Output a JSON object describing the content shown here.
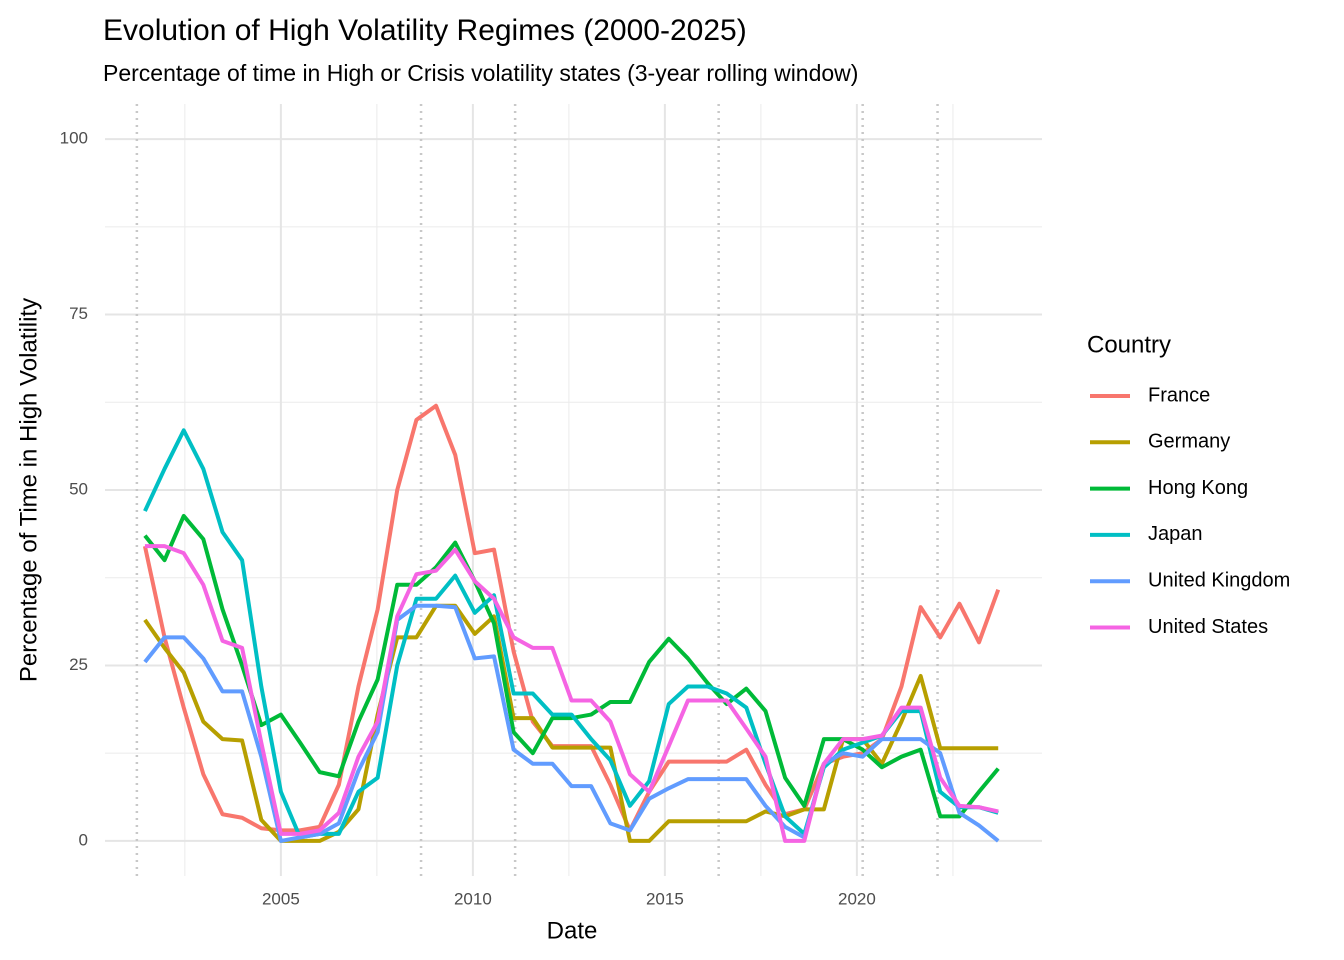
{
  "chart_data": {
    "type": "line",
    "title": "Evolution of High Volatility Regimes (2000-2025)",
    "subtitle": "Percentage of time in High or Crisis volatility states (3-year rolling window)",
    "x_label": "Date",
    "y_label": "Percentage of Time in High Volatility",
    "legend_title": "Country",
    "legend_position": "right",
    "grid": true,
    "xlim": [
      2000.42,
      2024.82
    ],
    "ylim": [
      -5,
      105
    ],
    "xticks": [
      2005,
      2010,
      2015,
      2020
    ],
    "yticks": [
      0,
      25,
      50,
      75,
      100
    ],
    "xminorticks": [
      2002.5,
      2007.5,
      2012.5,
      2017.5,
      2022.5
    ],
    "yminorticks": [
      12.5,
      37.5,
      62.5,
      87.5
    ],
    "event_lines": [
      2001.25,
      2008.65,
      2011.1,
      2016.4,
      2020.15,
      2022.1
    ],
    "x": [
      2001.46,
      2001.97,
      2002.47,
      2002.98,
      2003.48,
      2003.99,
      2004.49,
      2005.0,
      2005.5,
      2006.01,
      2006.51,
      2007.02,
      2007.52,
      2008.03,
      2008.53,
      2009.04,
      2009.54,
      2010.05,
      2010.55,
      2011.06,
      2011.56,
      2012.07,
      2012.57,
      2013.08,
      2013.58,
      2014.09,
      2014.59,
      2015.1,
      2015.6,
      2016.11,
      2016.61,
      2017.12,
      2017.62,
      2018.13,
      2018.63,
      2019.14,
      2019.64,
      2020.15,
      2020.65,
      2021.16,
      2021.66,
      2022.17,
      2022.67,
      2023.18,
      2023.68
    ],
    "series": [
      {
        "name": "France",
        "color": "#F8766D",
        "values": [
          42,
          29,
          19,
          9.5,
          3.8,
          3.3,
          1.8,
          1.5,
          1.5,
          2,
          8,
          22,
          33,
          50,
          60,
          62,
          55,
          41,
          41.5,
          27,
          17,
          13.5,
          13.5,
          13.5,
          8,
          1.5,
          7,
          11.3,
          11.3,
          11.3,
          11.3,
          13,
          8,
          3.8,
          4.5,
          11,
          12,
          12.5,
          14.5,
          22,
          33.3,
          29,
          33.8,
          28.3,
          35.8
        ]
      },
      {
        "name": "Germany",
        "color": "#B79F00",
        "values": [
          31.5,
          27.5,
          24,
          17,
          14.5,
          14.3,
          3,
          0,
          0,
          0,
          1.3,
          4.5,
          18,
          29,
          29,
          33.5,
          33.5,
          29.5,
          32,
          17.5,
          17.5,
          13.3,
          13.3,
          13.3,
          13.3,
          0,
          0,
          2.8,
          2.8,
          2.8,
          2.8,
          2.8,
          4.2,
          3.5,
          4.5,
          4.5,
          14.5,
          14.5,
          11,
          17,
          23.5,
          13.2,
          13.2,
          13.2,
          13.2
        ]
      },
      {
        "name": "Hong Kong",
        "color": "#00BA38",
        "values": [
          43.5,
          40,
          46.3,
          43,
          33,
          25,
          16.5,
          18,
          14,
          9.8,
          9.2,
          17,
          23,
          36.5,
          36.5,
          39,
          42.5,
          37,
          31,
          15.5,
          12.5,
          17.5,
          17.5,
          18,
          19.8,
          19.8,
          25.5,
          28.8,
          26,
          22.5,
          19.5,
          21.7,
          18.5,
          9,
          5,
          14.5,
          14.5,
          13,
          10.5,
          12,
          13,
          3.5,
          3.5,
          7,
          10.3
        ]
      },
      {
        "name": "Japan",
        "color": "#00BFC4",
        "values": [
          47,
          53,
          58.5,
          53,
          44,
          40,
          22,
          7,
          0.5,
          1,
          1,
          7,
          9,
          25,
          34.5,
          34.5,
          37.8,
          32.5,
          35,
          21,
          21,
          18,
          18,
          14.5,
          11.5,
          5,
          8.5,
          19.5,
          22,
          22,
          21,
          19,
          11,
          3.5,
          1,
          10.5,
          13,
          14,
          15,
          18.5,
          18.5,
          7,
          4.8,
          4.8,
          4
        ]
      },
      {
        "name": "United Kingdom",
        "color": "#619CFF",
        "values": [
          25.5,
          29,
          29,
          26,
          21.3,
          21.3,
          12,
          0,
          0.5,
          1,
          2.5,
          10,
          15.5,
          31.5,
          33.5,
          33.5,
          33.3,
          26,
          26.3,
          13,
          11,
          11,
          7.8,
          7.8,
          2.5,
          1.5,
          6,
          7.5,
          8.8,
          8.8,
          8.8,
          8.8,
          5,
          2,
          0.5,
          11,
          12.5,
          12,
          14.5,
          14.5,
          14.5,
          12.5,
          4,
          2.2,
          0
        ]
      },
      {
        "name": "United States",
        "color": "#F564E3",
        "values": [
          42,
          42,
          41,
          36.5,
          28.5,
          27.5,
          14,
          1,
          1,
          1.5,
          4,
          12,
          17,
          32,
          38,
          38.5,
          41.5,
          37,
          34.5,
          29,
          27.5,
          27.5,
          20,
          20,
          17,
          9.5,
          7,
          13.5,
          20,
          20,
          20,
          16,
          12,
          0,
          0,
          11,
          14.5,
          14.5,
          15,
          19,
          19,
          9,
          5,
          4.8,
          4.2
        ]
      }
    ]
  }
}
